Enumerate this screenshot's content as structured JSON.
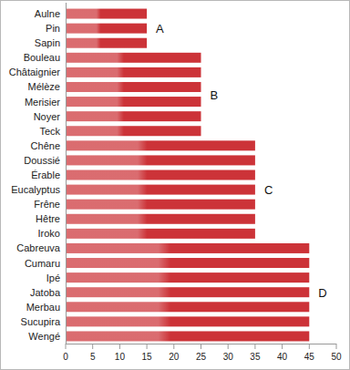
{
  "chart_data": {
    "type": "bar",
    "orientation": "horizontal",
    "categories": [
      "Aulne",
      "Pin",
      "Sapin",
      "Bouleau",
      "Châtaignier",
      "Mélèze",
      "Merisier",
      "Noyer",
      "Teck",
      "Chêne",
      "Doussié",
      "Érable",
      "Eucalyptus",
      "Frêne",
      "Hêtre",
      "Iroko",
      "Cabreuva",
      "Cumaru",
      "Ipé",
      "Jatoba",
      "Merbau",
      "Sucupira",
      "Wengé"
    ],
    "values": [
      15,
      15,
      15,
      25,
      25,
      25,
      25,
      25,
      25,
      35,
      35,
      35,
      35,
      35,
      35,
      35,
      45,
      45,
      45,
      45,
      45,
      45,
      45
    ],
    "color": "#cc3338",
    "xlim": [
      0,
      50
    ],
    "xticks": [
      0,
      5,
      10,
      15,
      20,
      25,
      30,
      35,
      40,
      45,
      50
    ],
    "grid": false,
    "annotations": [
      "A",
      "B",
      "C",
      "D"
    ]
  }
}
